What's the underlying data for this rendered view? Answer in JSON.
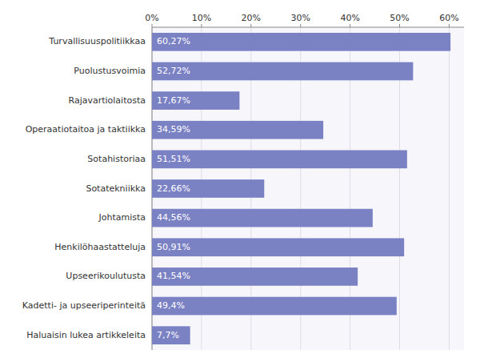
{
  "chart_data": {
    "type": "bar",
    "orientation": "horizontal",
    "categories": [
      "Haluaisin lukea artikkeleita",
      "Kadetti- ja upseeriperinteitä",
      "Upseerikoulutusta",
      "Henkilöhaastatteluja",
      "Johtamista",
      "Sotatekniikka",
      "Sotahistoriaa",
      "Operaatiotaitoa ja taktiikka",
      "Rajavartiolaitosta",
      "Puolustusvoimia",
      "Turvallisuuspolitiikkaa"
    ],
    "values": [
      7.7,
      49.4,
      41.54,
      50.91,
      44.56,
      22.66,
      51.51,
      34.59,
      17.67,
      52.72,
      60.27
    ],
    "value_labels": [
      "7,7%",
      "49,4%",
      "41,54%",
      "50,91%",
      "44,56%",
      "22,66%",
      "51,51%",
      "34,59%",
      "17,67%",
      "52,72%",
      "60,27%"
    ],
    "data_labels": true,
    "color": "#7b82c4",
    "xlim": [
      0,
      63
    ],
    "xticks": [
      {
        "value": 0,
        "label": "0%"
      },
      {
        "value": 10,
        "label": "10%"
      },
      {
        "value": 20,
        "label": "20%"
      },
      {
        "value": 30,
        "label": "30%"
      },
      {
        "value": 40,
        "label": "40%"
      },
      {
        "value": 50,
        "label": "50%"
      },
      {
        "value": 60,
        "label": "60%"
      }
    ],
    "grid": true
  }
}
